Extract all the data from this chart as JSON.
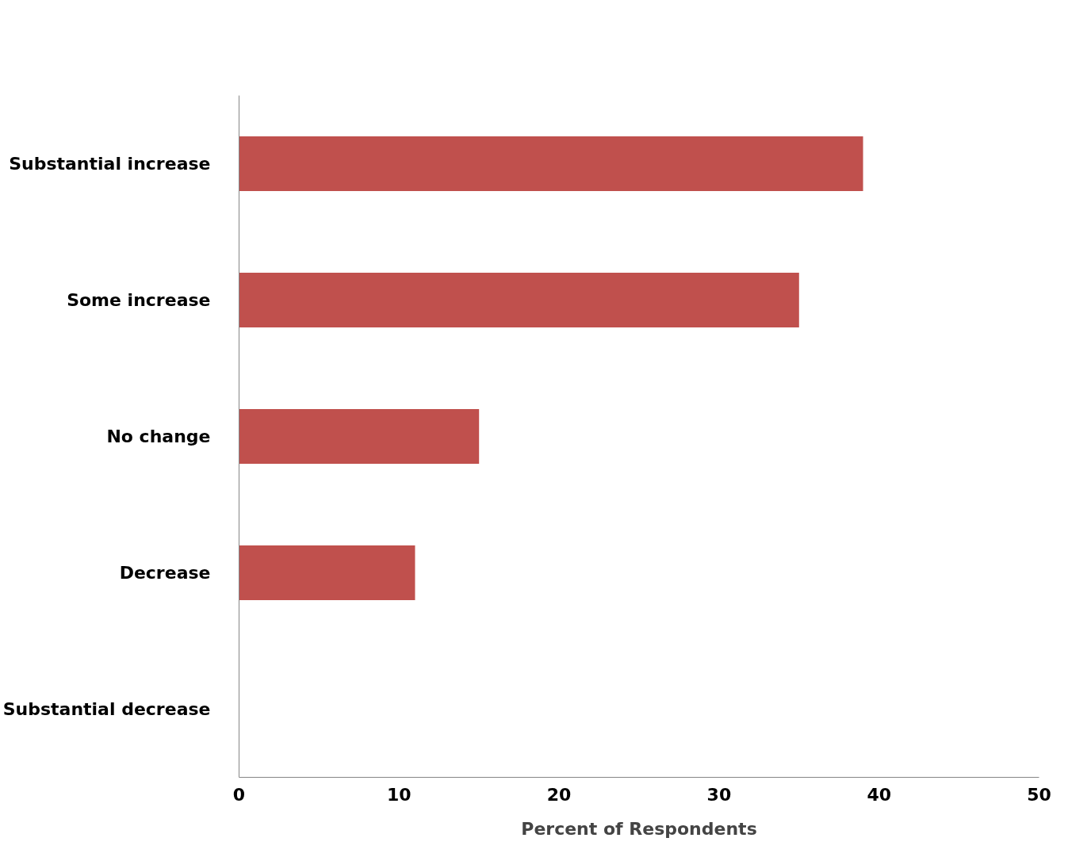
{
  "chart_data": {
    "type": "bar",
    "orientation": "horizontal",
    "categories": [
      "Substantial increase",
      "Some increase",
      "No change",
      "Decrease",
      "Substantial decrease"
    ],
    "values": [
      39,
      35,
      15,
      11,
      0
    ],
    "color": "#c0504d",
    "xlim": [
      0,
      50
    ],
    "xticks": [
      0,
      10,
      20,
      30,
      40,
      50
    ],
    "xlabel": "Percent of Respondents",
    "grid": false
  }
}
